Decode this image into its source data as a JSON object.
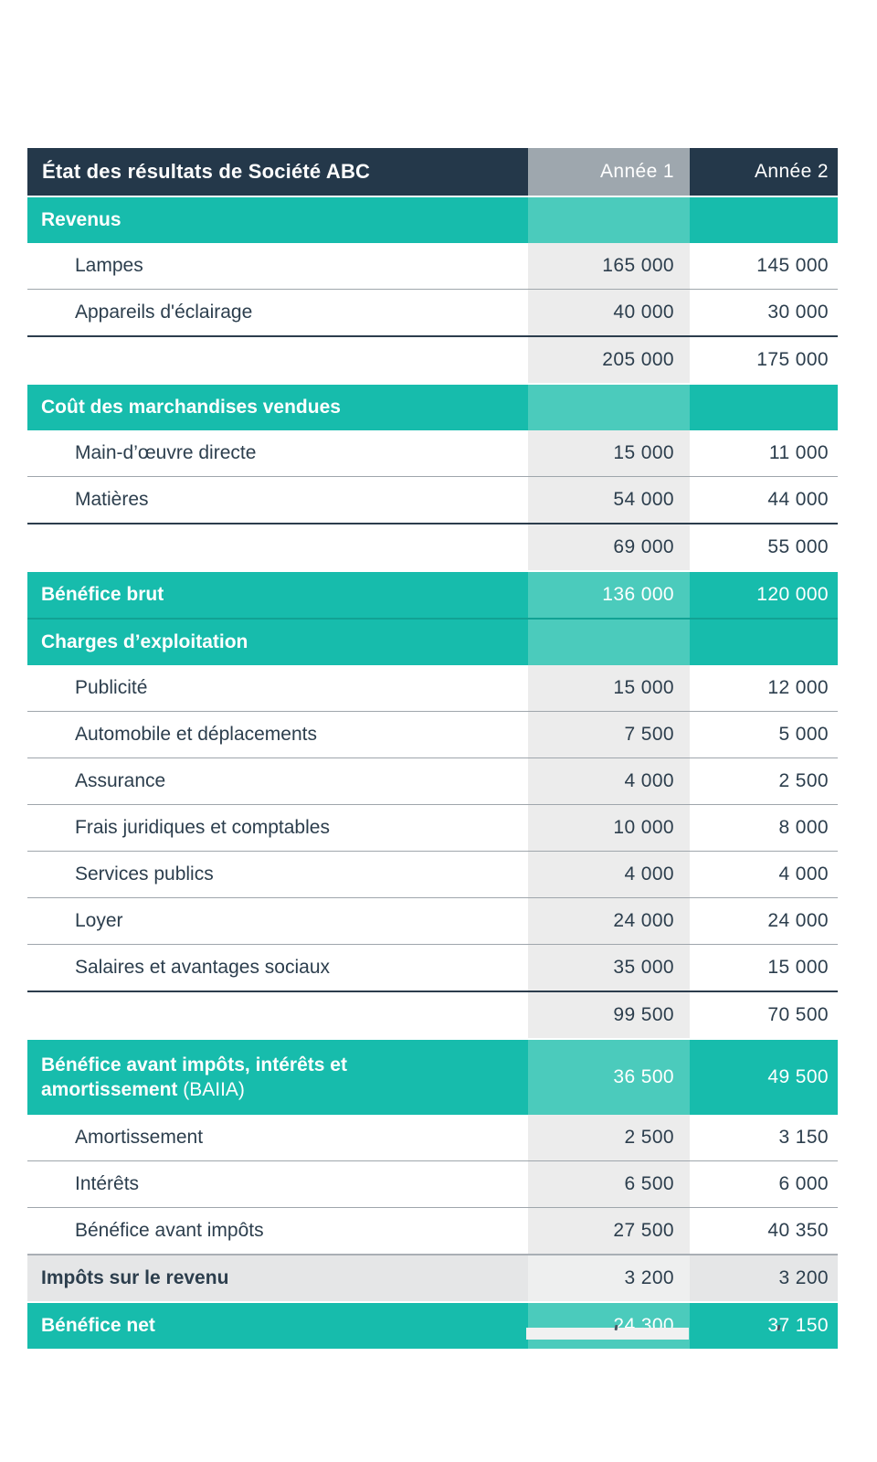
{
  "accent_colors": {
    "navy": "#24384A",
    "teal": "#17BCAC",
    "teal_band": "#4BCBBC",
    "header_grey": "#9EA7AE",
    "column_band_grey": "#ECECEC",
    "text": "#2C3E4D"
  },
  "table": {
    "title": "État des résultats de Société ABC",
    "columns": [
      "Année 1",
      "Année 2"
    ],
    "rows": [
      {
        "type": "header",
        "name": "table-header",
        "label": "État des résultats de Société ABC",
        "v1": "Année 1",
        "v2": "Année 2",
        "sep": "none"
      },
      {
        "type": "section",
        "name": "section-revenus",
        "label": "Revenus",
        "v1": "",
        "v2": "",
        "sep": "gap"
      },
      {
        "type": "item",
        "name": "row-lampes",
        "label": "Lampes",
        "v1": "165 000",
        "v2": "145 000",
        "sep": "none"
      },
      {
        "type": "item",
        "name": "row-appareils-eclairage",
        "label": "Appareils d'éclairage",
        "v1": "40 000",
        "v2": "30 000",
        "sep": "thin"
      },
      {
        "type": "total",
        "name": "row-total-revenus",
        "label": "",
        "v1": "205 000",
        "v2": "175 000",
        "sep": "dark"
      },
      {
        "type": "section",
        "name": "section-cout-marchandises",
        "label": "Coût des marchandises vendues",
        "v1": "",
        "v2": "",
        "sep": "gap"
      },
      {
        "type": "item",
        "name": "row-main-doeuvre",
        "label": "Main-d’œuvre directe",
        "v1": "15 000",
        "v2": "11 000",
        "sep": "none"
      },
      {
        "type": "item",
        "name": "row-matieres",
        "label": "Matières",
        "v1": "54 000",
        "v2": "44 000",
        "sep": "thin"
      },
      {
        "type": "total",
        "name": "row-total-cmv",
        "label": "",
        "v1": "69 000",
        "v2": "55 000",
        "sep": "dark"
      },
      {
        "type": "tealtotal",
        "name": "row-benefice-brut",
        "label": "Bénéfice brut",
        "v1": "136 000",
        "v2": "120 000",
        "sep": "gap"
      },
      {
        "type": "section",
        "name": "section-charges-exploitation",
        "label": "Charges d’exploitation",
        "v1": "",
        "v2": "",
        "sep": "tealline"
      },
      {
        "type": "item",
        "name": "row-publicite",
        "label": "Publicité",
        "v1": "15 000",
        "v2": "12 000",
        "sep": "none"
      },
      {
        "type": "item",
        "name": "row-automobile",
        "label": "Automobile et déplacements",
        "v1": "7 500",
        "v2": "5 000",
        "sep": "thin"
      },
      {
        "type": "item",
        "name": "row-assurance",
        "label": "Assurance",
        "v1": "4 000",
        "v2": "2 500",
        "sep": "thin"
      },
      {
        "type": "item",
        "name": "row-frais-juridiques",
        "label": "Frais juridiques et comptables",
        "v1": "10 000",
        "v2": "8 000",
        "sep": "thin"
      },
      {
        "type": "item",
        "name": "row-services-publics",
        "label": "Services publics",
        "v1": "4 000",
        "v2": "4 000",
        "sep": "thin"
      },
      {
        "type": "item",
        "name": "row-loyer",
        "label": "Loyer",
        "v1": "24 000",
        "v2": "24 000",
        "sep": "thin"
      },
      {
        "type": "item",
        "name": "row-salaires",
        "label": "Salaires et avantages sociaux",
        "v1": "35 000",
        "v2": "15 000",
        "sep": "thin"
      },
      {
        "type": "total",
        "name": "row-total-charges",
        "label": "",
        "v1": "99 500",
        "v2": "70 500",
        "sep": "dark"
      },
      {
        "type": "baiia",
        "name": "row-baiia",
        "label": "Bénéfice avant impôts, intérêts et amortissement ",
        "suffix": "(BAIIA)",
        "v1": "36 500",
        "v2": "49 500",
        "sep": "gap"
      },
      {
        "type": "item",
        "name": "row-amortissement",
        "label": "Amortissement",
        "v1": "2 500",
        "v2": "3 150",
        "sep": "none"
      },
      {
        "type": "item",
        "name": "row-interets",
        "label": "Intérêts",
        "v1": "6 500",
        "v2": "6 000",
        "sep": "thin"
      },
      {
        "type": "item",
        "name": "row-benefice-avant-impots",
        "label": "Bénéfice avant impôts",
        "v1": "27 500",
        "v2": "40 350",
        "sep": "thin"
      },
      {
        "type": "grey",
        "name": "row-impots",
        "label": "Impôts sur le revenu",
        "v1": "3 200",
        "v2": "3 200",
        "sep": "grey2"
      },
      {
        "type": "tealtotal",
        "name": "row-benefice-net",
        "label": "Bénéfice net",
        "v1": "24 300",
        "v2": "37 150",
        "sep": "gap"
      }
    ]
  },
  "fragment": {
    "description": "cropped top edge of a following row",
    "tick_count": 2
  }
}
